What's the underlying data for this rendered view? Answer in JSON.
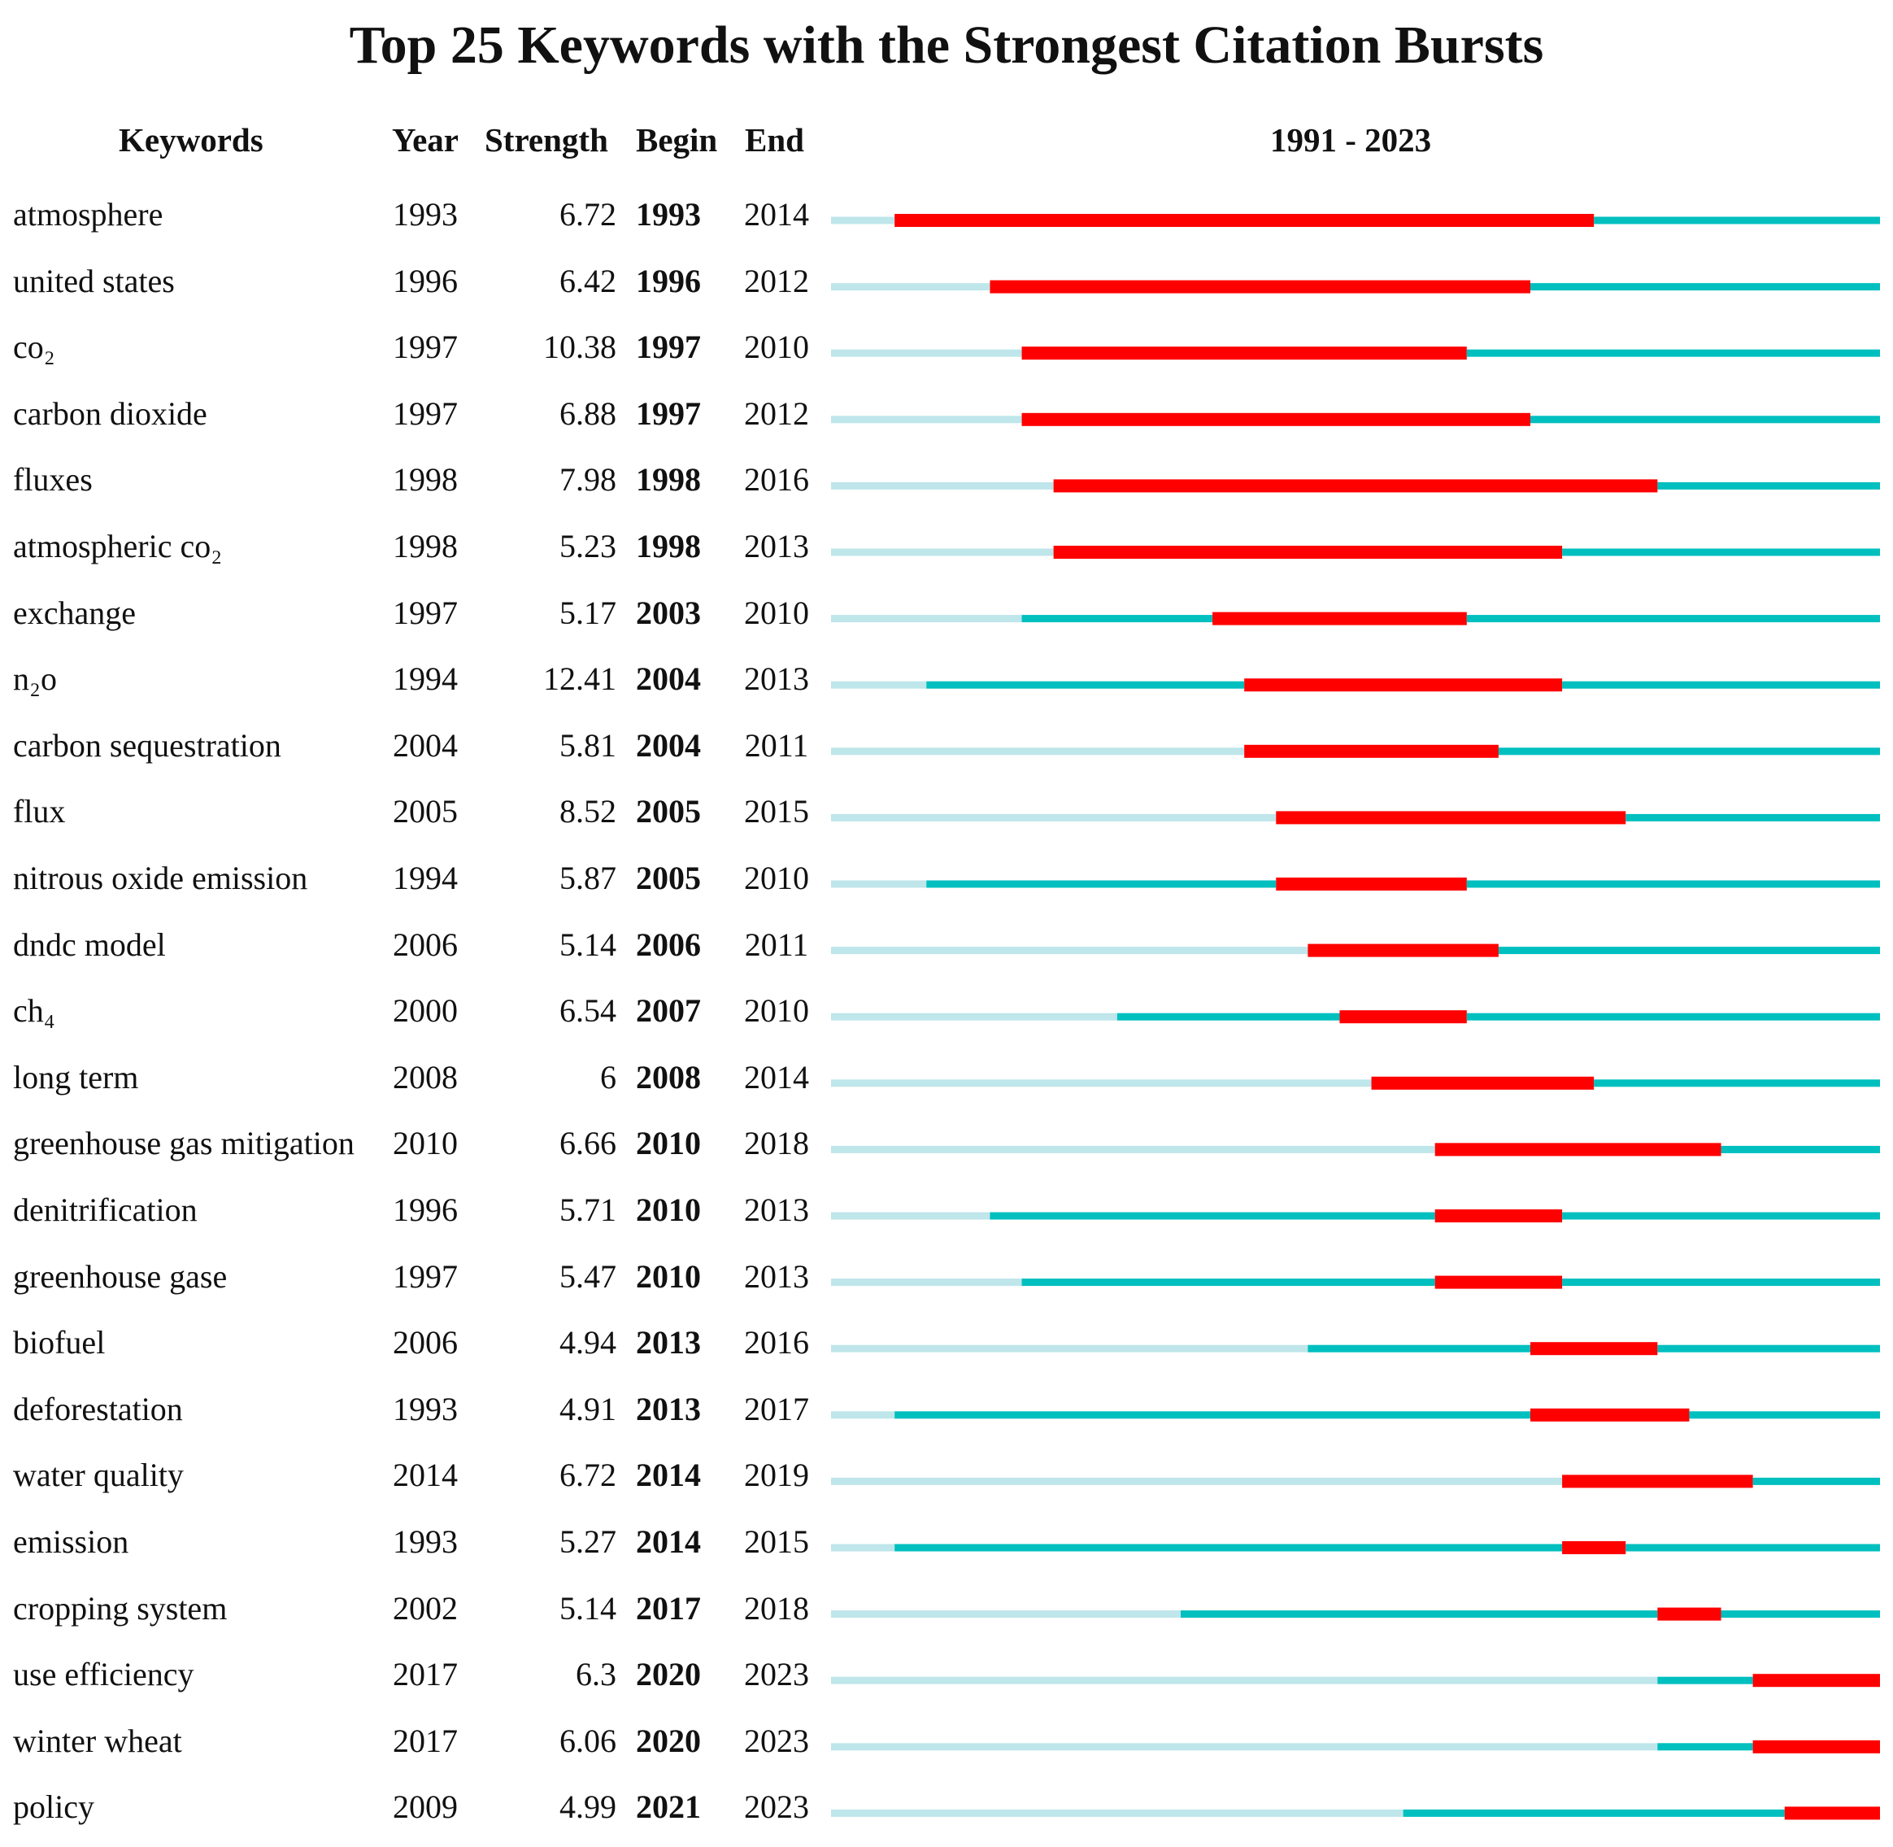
{
  "title": "Top 25 Keywords with the Strongest Citation Bursts",
  "headers": {
    "keywords": "Keywords",
    "year": "Year",
    "strength": "Strength",
    "begin": "Begin",
    "end": "End",
    "range": "1991 - 2023"
  },
  "colors": {
    "burst": "#ff0000",
    "active": "#00bfbf",
    "inactive": "#bfe6ea"
  },
  "chart_data": {
    "type": "table",
    "period_start": 1991,
    "period_end": 2023,
    "rows": [
      {
        "keyword": "atmosphere",
        "year": 1993,
        "strength": "6.72",
        "begin": 1993,
        "end": 2014
      },
      {
        "keyword": "united states",
        "year": 1996,
        "strength": "6.42",
        "begin": 1996,
        "end": 2012
      },
      {
        "keyword": "co₂",
        "year": 1997,
        "strength": "10.38",
        "begin": 1997,
        "end": 2010
      },
      {
        "keyword": "carbon dioxide",
        "year": 1997,
        "strength": "6.88",
        "begin": 1997,
        "end": 2012
      },
      {
        "keyword": "fluxes",
        "year": 1998,
        "strength": "7.98",
        "begin": 1998,
        "end": 2016
      },
      {
        "keyword": "atmospheric co₂",
        "year": 1998,
        "strength": "5.23",
        "begin": 1998,
        "end": 2013
      },
      {
        "keyword": "exchange",
        "year": 1997,
        "strength": "5.17",
        "begin": 2003,
        "end": 2010
      },
      {
        "keyword": "n₂o",
        "year": 1994,
        "strength": "12.41",
        "begin": 2004,
        "end": 2013
      },
      {
        "keyword": "carbon sequestration",
        "year": 2004,
        "strength": "5.81",
        "begin": 2004,
        "end": 2011
      },
      {
        "keyword": "flux",
        "year": 2005,
        "strength": "8.52",
        "begin": 2005,
        "end": 2015
      },
      {
        "keyword": "nitrous oxide emission",
        "year": 1994,
        "strength": "5.87",
        "begin": 2005,
        "end": 2010
      },
      {
        "keyword": "dndc model",
        "year": 2006,
        "strength": "5.14",
        "begin": 2006,
        "end": 2011
      },
      {
        "keyword": "ch₄",
        "year": 2000,
        "strength": "6.54",
        "begin": 2007,
        "end": 2010
      },
      {
        "keyword": "long term",
        "year": 2008,
        "strength": "6",
        "begin": 2008,
        "end": 2014
      },
      {
        "keyword": "greenhouse gas mitigation",
        "year": 2010,
        "strength": "6.66",
        "begin": 2010,
        "end": 2018
      },
      {
        "keyword": "denitrification",
        "year": 1996,
        "strength": "5.71",
        "begin": 2010,
        "end": 2013
      },
      {
        "keyword": "greenhouse gase",
        "year": 1997,
        "strength": "5.47",
        "begin": 2010,
        "end": 2013
      },
      {
        "keyword": "biofuel",
        "year": 2006,
        "strength": "4.94",
        "begin": 2013,
        "end": 2016
      },
      {
        "keyword": "deforestation",
        "year": 1993,
        "strength": "4.91",
        "begin": 2013,
        "end": 2017
      },
      {
        "keyword": "water quality",
        "year": 2014,
        "strength": "6.72",
        "begin": 2014,
        "end": 2019
      },
      {
        "keyword": "emission",
        "year": 1993,
        "strength": "5.27",
        "begin": 2014,
        "end": 2015
      },
      {
        "keyword": "cropping system",
        "year": 2002,
        "strength": "5.14",
        "begin": 2017,
        "end": 2018
      },
      {
        "keyword": "use efficiency",
        "year": 2017,
        "strength": "6.3",
        "begin": 2020,
        "end": 2023
      },
      {
        "keyword": "winter wheat",
        "year": 2017,
        "strength": "6.06",
        "begin": 2020,
        "end": 2023
      },
      {
        "keyword": "policy",
        "year": 2009,
        "strength": "4.99",
        "begin": 2021,
        "end": 2023
      }
    ]
  }
}
